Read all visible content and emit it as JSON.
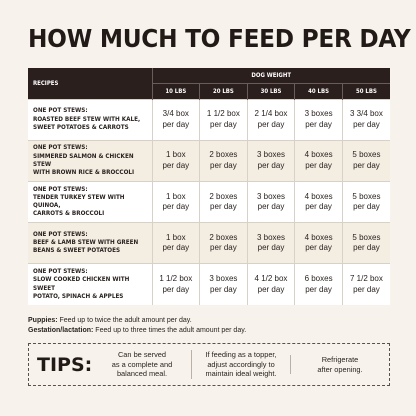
{
  "title": "HOW MUCH TO FEED PER DAY",
  "table": {
    "recipes_header": "RECIPES",
    "weight_header": "DOG WEIGHT",
    "weights": [
      "10 LBS",
      "20 LBS",
      "30 LBS",
      "40 LBS",
      "50 LBS"
    ],
    "rows": [
      {
        "recipe": [
          "ONE POT STEWS:",
          "ROASTED BEEF STEW WITH KALE,",
          "SWEET POTATOES & CARROTS"
        ],
        "amounts": [
          [
            "3/4 box",
            "per day"
          ],
          [
            "1 1/2 box",
            "per day"
          ],
          [
            "2 1/4 box",
            "per day"
          ],
          [
            "3 boxes",
            "per day"
          ],
          [
            "3 3/4 box",
            "per day"
          ]
        ]
      },
      {
        "recipe": [
          "ONE POT STEWS:",
          "SIMMERED SALMON & CHICKEN STEW",
          "WITH BROWN RICE & BROCCOLI"
        ],
        "amounts": [
          [
            "1 box",
            "per day"
          ],
          [
            "2 boxes",
            "per day"
          ],
          [
            "3 boxes",
            "per day"
          ],
          [
            "4 boxes",
            "per day"
          ],
          [
            "5 boxes",
            "per day"
          ]
        ]
      },
      {
        "recipe": [
          "ONE POT STEWS:",
          "TENDER TURKEY STEW WITH QUINOA,",
          "CARROTS & BROCCOLI"
        ],
        "amounts": [
          [
            "1 box",
            "per day"
          ],
          [
            "2 boxes",
            "per day"
          ],
          [
            "3 boxes",
            "per day"
          ],
          [
            "4 boxes",
            "per day"
          ],
          [
            "5 boxes",
            "per day"
          ]
        ]
      },
      {
        "recipe": [
          "ONE POT STEWS:",
          "BEEF & LAMB STEW WITH GREEN",
          "BEANS & SWEET POTATOES"
        ],
        "amounts": [
          [
            "1 box",
            "per day"
          ],
          [
            "2 boxes",
            "per day"
          ],
          [
            "3 boxes",
            "per day"
          ],
          [
            "4 boxes",
            "per day"
          ],
          [
            "5 boxes",
            "per day"
          ]
        ]
      },
      {
        "recipe": [
          "ONE POT STEWS:",
          "SLOW COOKED CHICKEN WITH SWEET",
          "POTATO, SPINACH & APPLES"
        ],
        "amounts": [
          [
            "1 1/2 box",
            "per day"
          ],
          [
            "3 boxes",
            "per day"
          ],
          [
            "4 1/2 box",
            "per day"
          ],
          [
            "6 boxes",
            "per day"
          ],
          [
            "7 1/2 box",
            "per day"
          ]
        ]
      }
    ]
  },
  "notes": {
    "puppies_label": "Puppies:",
    "puppies_text": " Feed up to twice the adult amount per day.",
    "gestation_label": "Gestation/lactation:",
    "gestation_text": " Feed up to three times the adult amount per day."
  },
  "tips": {
    "label": "TIPS:",
    "items": [
      [
        "Can be served",
        "as a complete and",
        "balanced meal."
      ],
      [
        "If feeding as a topper,",
        "adjust accordingly to",
        "maintain ideal weight."
      ],
      [
        "Refrigerate",
        "after opening."
      ]
    ]
  },
  "colors": {
    "background": "#f7f3ec",
    "header": "#2a1f1d",
    "row_alt": "#f4ede2",
    "text": "#2a2320"
  }
}
